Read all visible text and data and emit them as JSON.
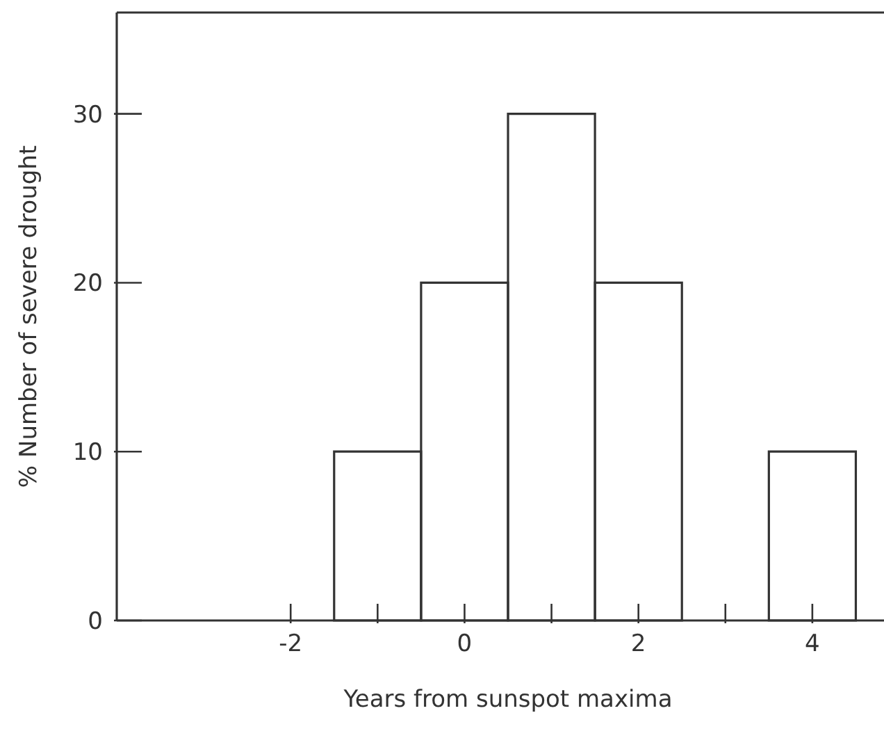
{
  "chart_data": {
    "type": "histogram",
    "xlabel": "Years from sunspot maxima",
    "ylabel": "% Number of severe drought",
    "bins": [
      -1.5,
      -0.5,
      0.5,
      1.5,
      2.5,
      3.5,
      4.5
    ],
    "values": [
      10,
      20,
      30,
      20,
      0,
      10
    ],
    "color": "#333333",
    "xlim": [
      -4,
      5
    ],
    "ylim": [
      0,
      36
    ],
    "xticks": [
      -2,
      {
        "value": -1,
        "label": null
      },
      0,
      {
        "value": 1,
        "label": null
      },
      2,
      {
        "value": 3,
        "label": null
      },
      4
    ],
    "yticks": [
      0,
      10,
      20,
      30
    ]
  }
}
